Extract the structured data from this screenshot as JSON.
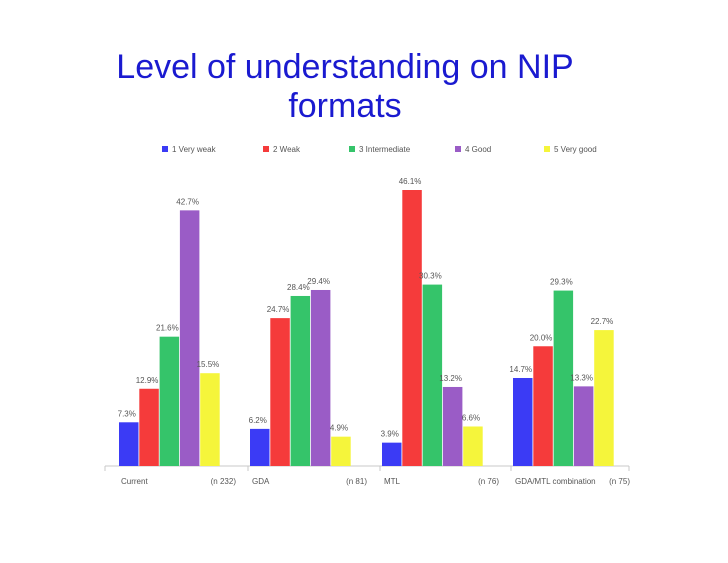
{
  "chart_data": {
    "type": "bar",
    "title": "Level of understanding on NIP formats",
    "categories": [
      "Current",
      "GDA",
      "MTL",
      "GDA/MTL combination"
    ],
    "category_n": [
      "(n  232)",
      "(n  81)",
      "(n  76)",
      "(n  75)"
    ],
    "series": [
      {
        "name": "1  Very weak",
        "color": "#3b3bf5",
        "values": [
          7.3,
          6.2,
          3.9,
          14.7
        ]
      },
      {
        "name": "2  Weak",
        "color": "#f53b3b",
        "values": [
          12.9,
          24.7,
          46.1,
          20.0
        ]
      },
      {
        "name": "3  Intermediate",
        "color": "#35c46a",
        "values": [
          21.6,
          28.4,
          30.3,
          29.3
        ]
      },
      {
        "name": "4  Good",
        "color": "#9a5cc6",
        "values": [
          42.7,
          29.4,
          13.2,
          13.3
        ]
      },
      {
        "name": "5  Very good",
        "color": "#f5f53b",
        "values": [
          15.5,
          4.9,
          6.6,
          22.7
        ]
      }
    ],
    "value_suffix": "%",
    "ylim": [
      0,
      48
    ],
    "grid": false,
    "legend": "top",
    "xlabel": "",
    "ylabel": ""
  }
}
